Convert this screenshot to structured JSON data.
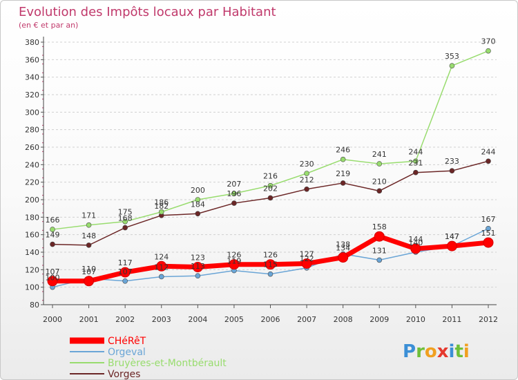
{
  "chart_data": {
    "type": "line",
    "title": "Evolution des Impôts locaux par Habitant",
    "subtitle": "(en € et par an)",
    "categories": [
      "2000",
      "2001",
      "2002",
      "2003",
      "2004",
      "2005",
      "2006",
      "2007",
      "2008",
      "2009",
      "2010",
      "2011",
      "2012"
    ],
    "ylim": [
      80,
      380
    ],
    "yticks": [
      80,
      100,
      120,
      140,
      160,
      180,
      200,
      220,
      240,
      260,
      280,
      300,
      320,
      340,
      360,
      380
    ],
    "grid": "horizontal dashed",
    "series": [
      {
        "name": "CHéRêT",
        "color": "#ff0000",
        "width": 7,
        "values": [
          107,
          107,
          117,
          124,
          123,
          126,
          126,
          127,
          134,
          158,
          144,
          147,
          151
        ]
      },
      {
        "name": "Orgeval",
        "color": "#6aa5d6",
        "width": 1.5,
        "values": [
          100,
          110,
          107,
          112,
          113,
          119,
          115,
          122,
          138,
          131,
          140,
          147,
          167
        ]
      },
      {
        "name": "Bruyères-et-Montbérault",
        "color": "#98dc6e",
        "width": 1.5,
        "values": [
          166,
          171,
          175,
          186,
          200,
          207,
          216,
          230,
          246,
          241,
          244,
          353,
          370
        ]
      },
      {
        "name": "Vorges",
        "color": "#6b2626",
        "width": 1.5,
        "values": [
          149,
          148,
          168,
          182,
          184,
          196,
          202,
          212,
          219,
          210,
          231,
          233,
          244
        ]
      }
    ]
  },
  "legend": {
    "items": [
      {
        "name": "CHéRêT",
        "color": "#ff0000"
      },
      {
        "name": "Orgeval",
        "color": "#6aa5d6"
      },
      {
        "name": "Bruyères-et-Montbérault",
        "color": "#98dc6e"
      },
      {
        "name": "Vorges",
        "color": "#6b2626"
      }
    ]
  },
  "logo": {
    "letters": [
      {
        "ch": "P",
        "color": "#3b8fd6"
      },
      {
        "ch": "r",
        "color": "#6fbf3a"
      },
      {
        "ch": "o",
        "color": "#f0a020"
      },
      {
        "ch": "x",
        "color": "#e5392e"
      },
      {
        "ch": "i",
        "color": "#3b8fd6"
      },
      {
        "ch": "t",
        "color": "#6fbf3a"
      },
      {
        "ch": "i",
        "color": "#f0a020"
      }
    ]
  }
}
